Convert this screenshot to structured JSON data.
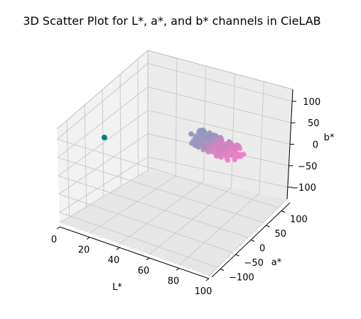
{
  "chart_data": {
    "type": "scatter",
    "projection": "3d",
    "title": "3D Scatter Plot for L*, a*, and b* channels in CieLAB",
    "xlabel": "L*",
    "ylabel": "a*",
    "zlabel": "b*",
    "xlim": [
      0,
      100
    ],
    "ylim": [
      -128,
      128
    ],
    "zlim": [
      -128,
      128
    ],
    "xticks": [
      "0",
      "20",
      "40",
      "60",
      "80",
      "100"
    ],
    "yticks": [
      "−100",
      "−50",
      "0",
      "50",
      "100"
    ],
    "zticks": [
      "−100",
      "−50",
      "0",
      "50",
      "100"
    ],
    "grid": true,
    "series": [
      {
        "color": "#008080",
        "points": [
          [
            0,
            0,
            0
          ]
        ]
      },
      {
        "color_range": [
          "#8b9bbd",
          "#f07cc4"
        ],
        "points_description_free": true,
        "L_range": [
          65,
          90
        ],
        "a_range": [
          -10,
          40
        ],
        "b_range": [
          -25,
          10
        ]
      }
    ]
  }
}
